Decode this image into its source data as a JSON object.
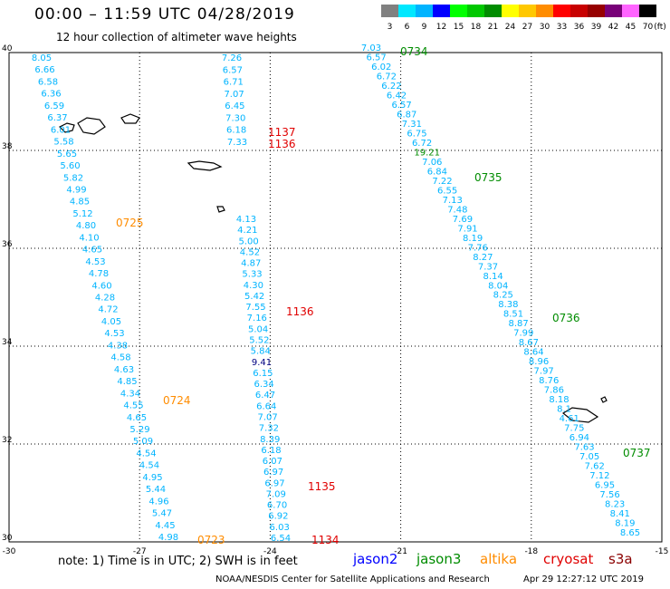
{
  "header": {
    "title": "00:00 – 11:59 UTC 04/28/2019",
    "subtitle": "12 hour collection of altimeter wave heights"
  },
  "legend": {
    "labels": [
      "3",
      "6",
      "9",
      "12",
      "15",
      "18",
      "21",
      "24",
      "27",
      "30",
      "33",
      "36",
      "39",
      "42",
      "45",
      "70"
    ],
    "unit": "(ft)",
    "colors": [
      "#808080",
      "#00e8ff",
      "#00b4ff",
      "#0000ff",
      "#00ff00",
      "#00c800",
      "#008c00",
      "#ffff00",
      "#ffc800",
      "#ff8c00",
      "#ff0000",
      "#c80000",
      "#960000",
      "#780078",
      "#ff64ff",
      "#000000"
    ]
  },
  "map": {
    "x_ticks": [
      "-30",
      "-27",
      "-24",
      "-21",
      "-18",
      "-15"
    ],
    "y_ticks": [
      "40",
      "38",
      "36",
      "34",
      "32",
      "30"
    ],
    "lon_range": [
      -30,
      -15
    ],
    "lat_range": [
      30,
      40
    ]
  },
  "tracks": [
    {
      "id": "A",
      "values": [
        "8.05",
        "6.66",
        "6.58",
        "6.36",
        "6.59",
        "6.37",
        "6.01",
        "5.58",
        "5.65",
        "5.60",
        "5.82",
        "4.99",
        "4.85",
        "5.12",
        "4.80",
        "4.10",
        "4.65",
        "4.53",
        "4.78",
        "4.60",
        "4.28",
        "4.72",
        "4.05",
        "4.53",
        "4.38",
        "4.58",
        "4.63",
        "4.85",
        "4.34",
        "4.55",
        "4.65",
        "5.29",
        "5.09",
        "4.54",
        "4.54",
        "4.95",
        "5.44",
        "4.96",
        "5.47",
        "4.45",
        "4.98"
      ]
    },
    {
      "id": "B",
      "values": [
        "7.26",
        "6.57",
        "6.71",
        "7.07",
        "6.45",
        "7.30",
        "6.18",
        "7.33"
      ]
    },
    {
      "id": "C",
      "values": [
        "4.13",
        "4.21",
        "5.00",
        "4.52",
        "4.87",
        "5.33",
        "4.30",
        "5.42",
        "7.55",
        "7.16",
        "5.04",
        "5.52",
        "5.84",
        "9.41",
        "6.15",
        "6.34",
        "6.47",
        "6.64",
        "7.07",
        "7.32",
        "8.39",
        "6.18",
        "6.07",
        "6.97",
        "6.97",
        "7.09",
        "6.70",
        "6.92",
        "6.03",
        "6.54"
      ]
    },
    {
      "id": "D",
      "values": [
        "7.03",
        "6.57",
        "6.02",
        "6.72",
        "6.22",
        "6.42",
        "6.57",
        "6.87",
        "7.31",
        "6.75",
        "6.72",
        "19.21",
        "7.06",
        "6.84",
        "7.22",
        "6.55",
        "7.13",
        "7.48",
        "7.69",
        "7.91",
        "8.19",
        "7.76",
        "8.27",
        "7.37",
        "8.14",
        "8.04",
        "8.25",
        "8.38",
        "8.51",
        "8.87",
        "7.99",
        "8.67",
        "8.64",
        "8.96",
        "7.97",
        "8.76",
        "7.86",
        "8.18",
        "8.1",
        "4.61",
        "7.75",
        "6.94",
        "7.63",
        "7.05",
        "7.62",
        "7.12",
        "6.95",
        "7.56",
        "8.23",
        "8.41",
        "8.19",
        "8.65"
      ]
    }
  ],
  "time_labels": [
    {
      "text": "0734",
      "mission": "jason3"
    },
    {
      "text": "1137",
      "mission": "cryosat"
    },
    {
      "text": "1136",
      "mission": "cryosat"
    },
    {
      "text": "0735",
      "mission": "jason3"
    },
    {
      "text": "0725",
      "mission": "altika"
    },
    {
      "text": "1136",
      "mission": "cryosat"
    },
    {
      "text": "0736",
      "mission": "jason3"
    },
    {
      "text": "0724",
      "mission": "altika"
    },
    {
      "text": "0737",
      "mission": "jason3"
    },
    {
      "text": "1135",
      "mission": "cryosat"
    },
    {
      "text": "0723",
      "mission": "altika"
    },
    {
      "text": "1134",
      "mission": "cryosat"
    }
  ],
  "mission_colors": {
    "jason2": "#0000ff",
    "jason3": "#008c00",
    "altika": "#ff8c00",
    "cryosat": "#e00000",
    "s3a": "#8b0000",
    "values": "#00b4ff",
    "highlight": "#008c00",
    "dark": "#000080"
  },
  "footer": {
    "note": "note: 1) Time is in UTC; 2) SWH is in feet",
    "missions": [
      {
        "key": "jason2",
        "label": "jason2"
      },
      {
        "key": "jason3",
        "label": "jason3"
      },
      {
        "key": "altika",
        "label": "altika"
      },
      {
        "key": "cryosat",
        "label": "cryosat"
      },
      {
        "key": "s3a",
        "label": "s3a"
      }
    ],
    "credit": "NOAA/NESDIS Center for Satellite Applications and Research",
    "timestamp": "Apr 29 12:27:12 UTC 2019"
  }
}
